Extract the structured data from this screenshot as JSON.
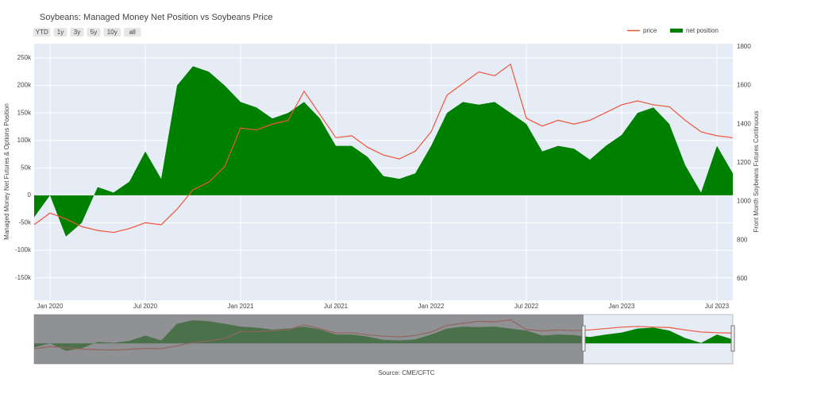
{
  "chart_data": {
    "type": "line-area",
    "title": "Soybeans: Managed Money Net Position vs Soybeans Price",
    "range_buttons": [
      "YTD",
      "1y",
      "3y",
      "5y",
      "10y",
      "all"
    ],
    "ylabel": "Managed Money Net Futures & Options Position",
    "y2label": "Front Month Soybeans Futures Continuous",
    "source": "Source: CME/CFTC",
    "x": [
      "2019-12",
      "2020-01",
      "2020-02",
      "2020-03",
      "2020-04",
      "2020-05",
      "2020-06",
      "2020-07",
      "2020-08",
      "2020-09",
      "2020-10",
      "2020-11",
      "2020-12",
      "2021-01",
      "2021-02",
      "2021-03",
      "2021-04",
      "2021-05",
      "2021-06",
      "2021-07",
      "2021-08",
      "2021-09",
      "2021-10",
      "2021-11",
      "2021-12",
      "2022-01",
      "2022-02",
      "2022-03",
      "2022-04",
      "2022-05",
      "2022-06",
      "2022-07",
      "2022-08",
      "2022-09",
      "2022-10",
      "2022-11",
      "2022-12",
      "2023-01",
      "2023-02",
      "2023-03",
      "2023-04",
      "2023-05",
      "2023-06",
      "2023-07",
      "2023-08"
    ],
    "series": [
      {
        "name": "price",
        "type": "line",
        "axis": "y2",
        "color": "#ef553b",
        "values": [
          880,
          940,
          910,
          870,
          850,
          840,
          860,
          890,
          880,
          960,
          1060,
          1100,
          1180,
          1380,
          1370,
          1400,
          1420,
          1570,
          1450,
          1330,
          1340,
          1280,
          1240,
          1220,
          1260,
          1360,
          1550,
          1610,
          1670,
          1650,
          1710,
          1430,
          1390,
          1420,
          1400,
          1420,
          1460,
          1500,
          1520,
          1500,
          1490,
          1420,
          1360,
          1340,
          1330
        ]
      },
      {
        "name": "net position",
        "type": "area",
        "color": "#008000",
        "values": [
          -40000,
          0,
          -75000,
          -50000,
          15000,
          5000,
          25000,
          80000,
          30000,
          200000,
          235000,
          225000,
          200000,
          170000,
          160000,
          140000,
          150000,
          170000,
          140000,
          90000,
          90000,
          70000,
          35000,
          30000,
          40000,
          90000,
          150000,
          170000,
          165000,
          170000,
          150000,
          130000,
          80000,
          90000,
          85000,
          65000,
          90000,
          110000,
          150000,
          160000,
          130000,
          55000,
          5000,
          90000,
          40000
        ]
      }
    ],
    "xlim": [
      "2019-12",
      "2023-08"
    ],
    "xticks": [
      {
        "value": "2020-01",
        "label": "Jan 2020"
      },
      {
        "value": "2020-07",
        "label": "Jul 2020"
      },
      {
        "value": "2021-01",
        "label": "Jan 2021"
      },
      {
        "value": "2021-07",
        "label": "Jul 2021"
      },
      {
        "value": "2022-01",
        "label": "Jan 2022"
      },
      {
        "value": "2022-07",
        "label": "Jul 2022"
      },
      {
        "value": "2023-01",
        "label": "Jan 2023"
      },
      {
        "value": "2023-07",
        "label": "Jul 2023"
      }
    ],
    "ylim": [
      -191000,
      276000
    ],
    "yticks": [
      {
        "value": -150000,
        "label": "-150k"
      },
      {
        "value": -100000,
        "label": "-100k"
      },
      {
        "value": -50000,
        "label": "-50k"
      },
      0,
      {
        "value": 50000,
        "label": "50k"
      },
      {
        "value": 100000,
        "label": "100k"
      },
      {
        "value": 150000,
        "label": "150k"
      },
      {
        "value": 200000,
        "label": "200k"
      },
      {
        "value": 250000,
        "label": "250k"
      }
    ],
    "y2lim": [
      489,
      1816
    ],
    "y2ticks": [
      600,
      800,
      1000,
      1200,
      1400,
      1600,
      1800
    ],
    "grid": true,
    "legend": "top-right",
    "rangeslider": true
  }
}
